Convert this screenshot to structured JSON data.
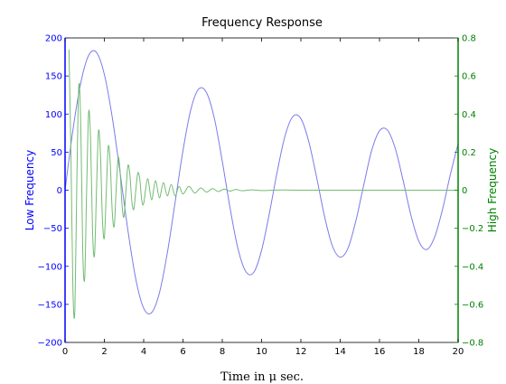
{
  "chart_data": {
    "type": "line",
    "title": "Frequency Response",
    "xlabel": "Time in μ sec.",
    "xlim": [
      0,
      20
    ],
    "x_ticks": [
      "0",
      "2",
      "4",
      "6",
      "8",
      "10",
      "12",
      "14",
      "16",
      "18",
      "20"
    ],
    "grid": false,
    "colors": {
      "left_axis": "#0000ff",
      "right_axis": "#008000",
      "low_line": "#7b7bea",
      "high_line": "#74bb74"
    },
    "left_axis": {
      "label": "Low Frequency",
      "ylim": [
        -200,
        200
      ],
      "ticks": [
        "200",
        "150",
        "100",
        "50",
        "0",
        "−50",
        "−100",
        "−150",
        "−200"
      ]
    },
    "right_axis": {
      "label": "High Frequency",
      "ylim": [
        -0.8,
        0.8
      ],
      "ticks": [
        "0.8",
        "0.6",
        "0.4",
        "0.2",
        "0",
        "−0.2",
        "−0.4",
        "−0.6",
        "−0.8"
      ]
    },
    "series": [
      {
        "axis": "left",
        "x": [
          0,
          0.4,
          0.8,
          1.2,
          1.6,
          2.0,
          2.4,
          2.8,
          3.2,
          3.6,
          4.0,
          4.4,
          4.8,
          5.2,
          5.6,
          6.0,
          6.4,
          6.8,
          7.2,
          7.6,
          8.0,
          8.4,
          8.8,
          9.2,
          9.6,
          10.0,
          10.4,
          10.8,
          11.2,
          11.6,
          12.0,
          12.4,
          12.8,
          13.2,
          13.6,
          14.0,
          14.4,
          14.8,
          15.2,
          15.6,
          16.0,
          16.4,
          16.8,
          17.2,
          17.6,
          18.0,
          18.4,
          18.8,
          19.2,
          19.6,
          20.0
        ],
        "y": [
          0,
          79,
          141,
          177,
          181,
          152,
          96,
          23,
          -53,
          -117,
          -155,
          -161,
          -135,
          -83,
          -16,
          52,
          106,
          133,
          128,
          94,
          38,
          -24,
          -77,
          -107,
          -108,
          -79,
          -30,
          25,
          72,
          97,
          94,
          64,
          17,
          -34,
          -73,
          -88,
          -76,
          -40,
          7,
          52,
          78,
          79,
          55,
          13,
          -33,
          -67,
          -78,
          -62,
          -26,
          20,
          61
        ]
      },
      {
        "axis": "right",
        "x": [
          0.2,
          0.3,
          0.4,
          0.5,
          0.6,
          0.7,
          0.8,
          0.9,
          1.0,
          1.1,
          1.2,
          1.3,
          1.4,
          1.5,
          1.6,
          1.7,
          1.8,
          1.9,
          2.0,
          2.1,
          2.2,
          2.3,
          2.4,
          2.5,
          2.6,
          2.7,
          2.8,
          2.9,
          3.0,
          3.1,
          3.2,
          3.3,
          3.4,
          3.5,
          3.6,
          3.7,
          3.8,
          3.9,
          4.0,
          4.2,
          4.4,
          4.6,
          4.8,
          5.0,
          5.2,
          5.4,
          5.6,
          5.8,
          6.0,
          6.3,
          6.6,
          6.9,
          7.2,
          7.5,
          7.8,
          8.1,
          8.4,
          8.7,
          9.0,
          9.5,
          10.0,
          11.0,
          12.0,
          14.0,
          16.0,
          18.0,
          20.0
        ],
        "y": [
          0.74,
          0.18,
          -0.52,
          -0.63,
          0.05,
          0.55,
          0.34,
          -0.32,
          -0.46,
          0.01,
          0.41,
          0.26,
          -0.22,
          -0.34,
          0.0,
          0.31,
          0.19,
          -0.15,
          -0.25,
          0.0,
          0.23,
          0.14,
          -0.11,
          -0.19,
          0.0,
          0.17,
          0.1,
          -0.08,
          -0.14,
          0.0,
          0.13,
          0.08,
          -0.06,
          -0.1,
          0.0,
          0.09,
          0.06,
          -0.05,
          -0.07,
          0.06,
          -0.05,
          0.05,
          -0.04,
          0.04,
          -0.03,
          0.03,
          -0.03,
          0.02,
          -0.02,
          0.02,
          -0.015,
          0.012,
          -0.01,
          0.008,
          -0.007,
          0.006,
          -0.005,
          0.004,
          -0.003,
          0.002,
          -0.002,
          0.001,
          0,
          0,
          0,
          0,
          0
        ]
      }
    ]
  }
}
